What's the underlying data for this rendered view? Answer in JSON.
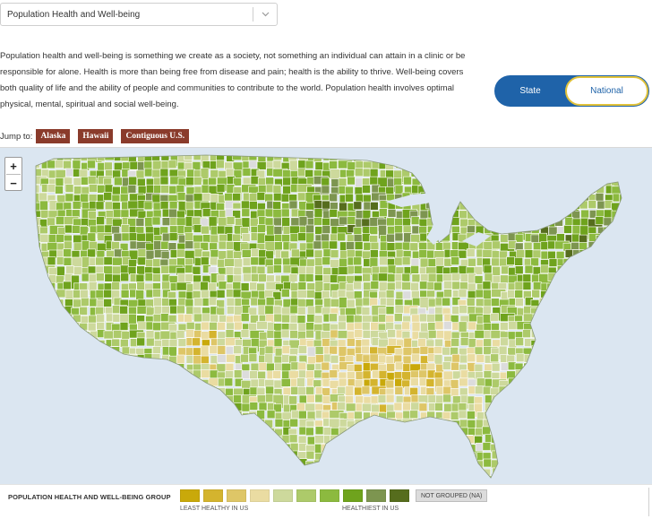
{
  "selector": {
    "value": "Population Health and Well-being"
  },
  "description": "Population health and well-being is something we create as a society, not something an individual can attain in a clinic or be responsible for alone. Health is more than being free from disease and pain; health is the ability to thrive. Well-being covers both quality of life and the ability of people and communities to contribute to the world. Population health involves optimal physical, mental, spiritual and social well-being.",
  "toggle": {
    "state_label": "State",
    "national_label": "National",
    "active": "National"
  },
  "jump": {
    "label": "Jump to:",
    "buttons": [
      "Alaska",
      "Hawaii",
      "Contiguous U.S."
    ]
  },
  "map": {
    "zoom_in_label": "+",
    "zoom_out_label": "−",
    "ocean_color": "#dbe6f1",
    "border_color": "#ffffff"
  },
  "legend": {
    "title": "POPULATION HEALTH AND WELL-BEING GROUP",
    "colors": [
      "#c9a90a",
      "#d4b42e",
      "#dec667",
      "#eadca2",
      "#cdd99c",
      "#adca6a",
      "#8cba3f",
      "#6fa31d",
      "#7d9550",
      "#566d1d"
    ],
    "least_label": "LEAST HEALTHY IN US",
    "healthiest_label": "HEALTHIEST IN US",
    "na_label": "NOT GROUPED (NA)",
    "na_color": "#dcdcdc"
  }
}
